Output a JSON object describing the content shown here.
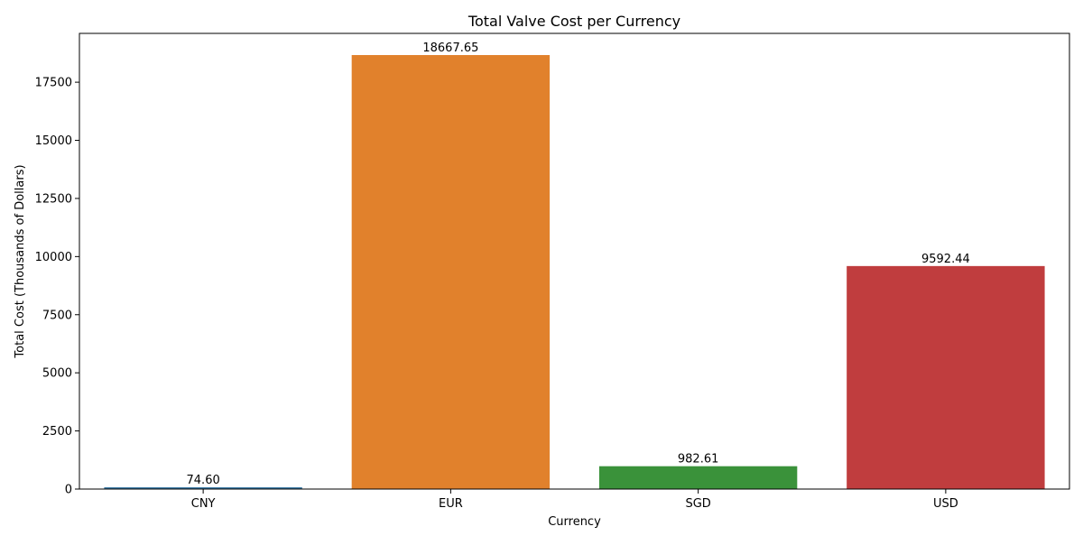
{
  "chart_data": {
    "type": "bar",
    "title": "Total Valve Cost per Currency",
    "xlabel": "Currency",
    "ylabel": "Total Cost (Thousands of Dollars)",
    "categories": [
      "CNY",
      "EUR",
      "SGD",
      "USD"
    ],
    "values": [
      74.6,
      18667.65,
      982.61,
      9592.44
    ],
    "data_labels": [
      "74.60",
      "18667.65",
      "982.61",
      "9592.44"
    ],
    "colors": [
      "#3274a1",
      "#e1812c",
      "#3a923a",
      "#c03d3e"
    ],
    "ylim": [
      0,
      19600
    ],
    "yticks": [
      0,
      2500,
      5000,
      7500,
      10000,
      12500,
      15000,
      17500
    ],
    "grid": false,
    "legend": "none"
  }
}
